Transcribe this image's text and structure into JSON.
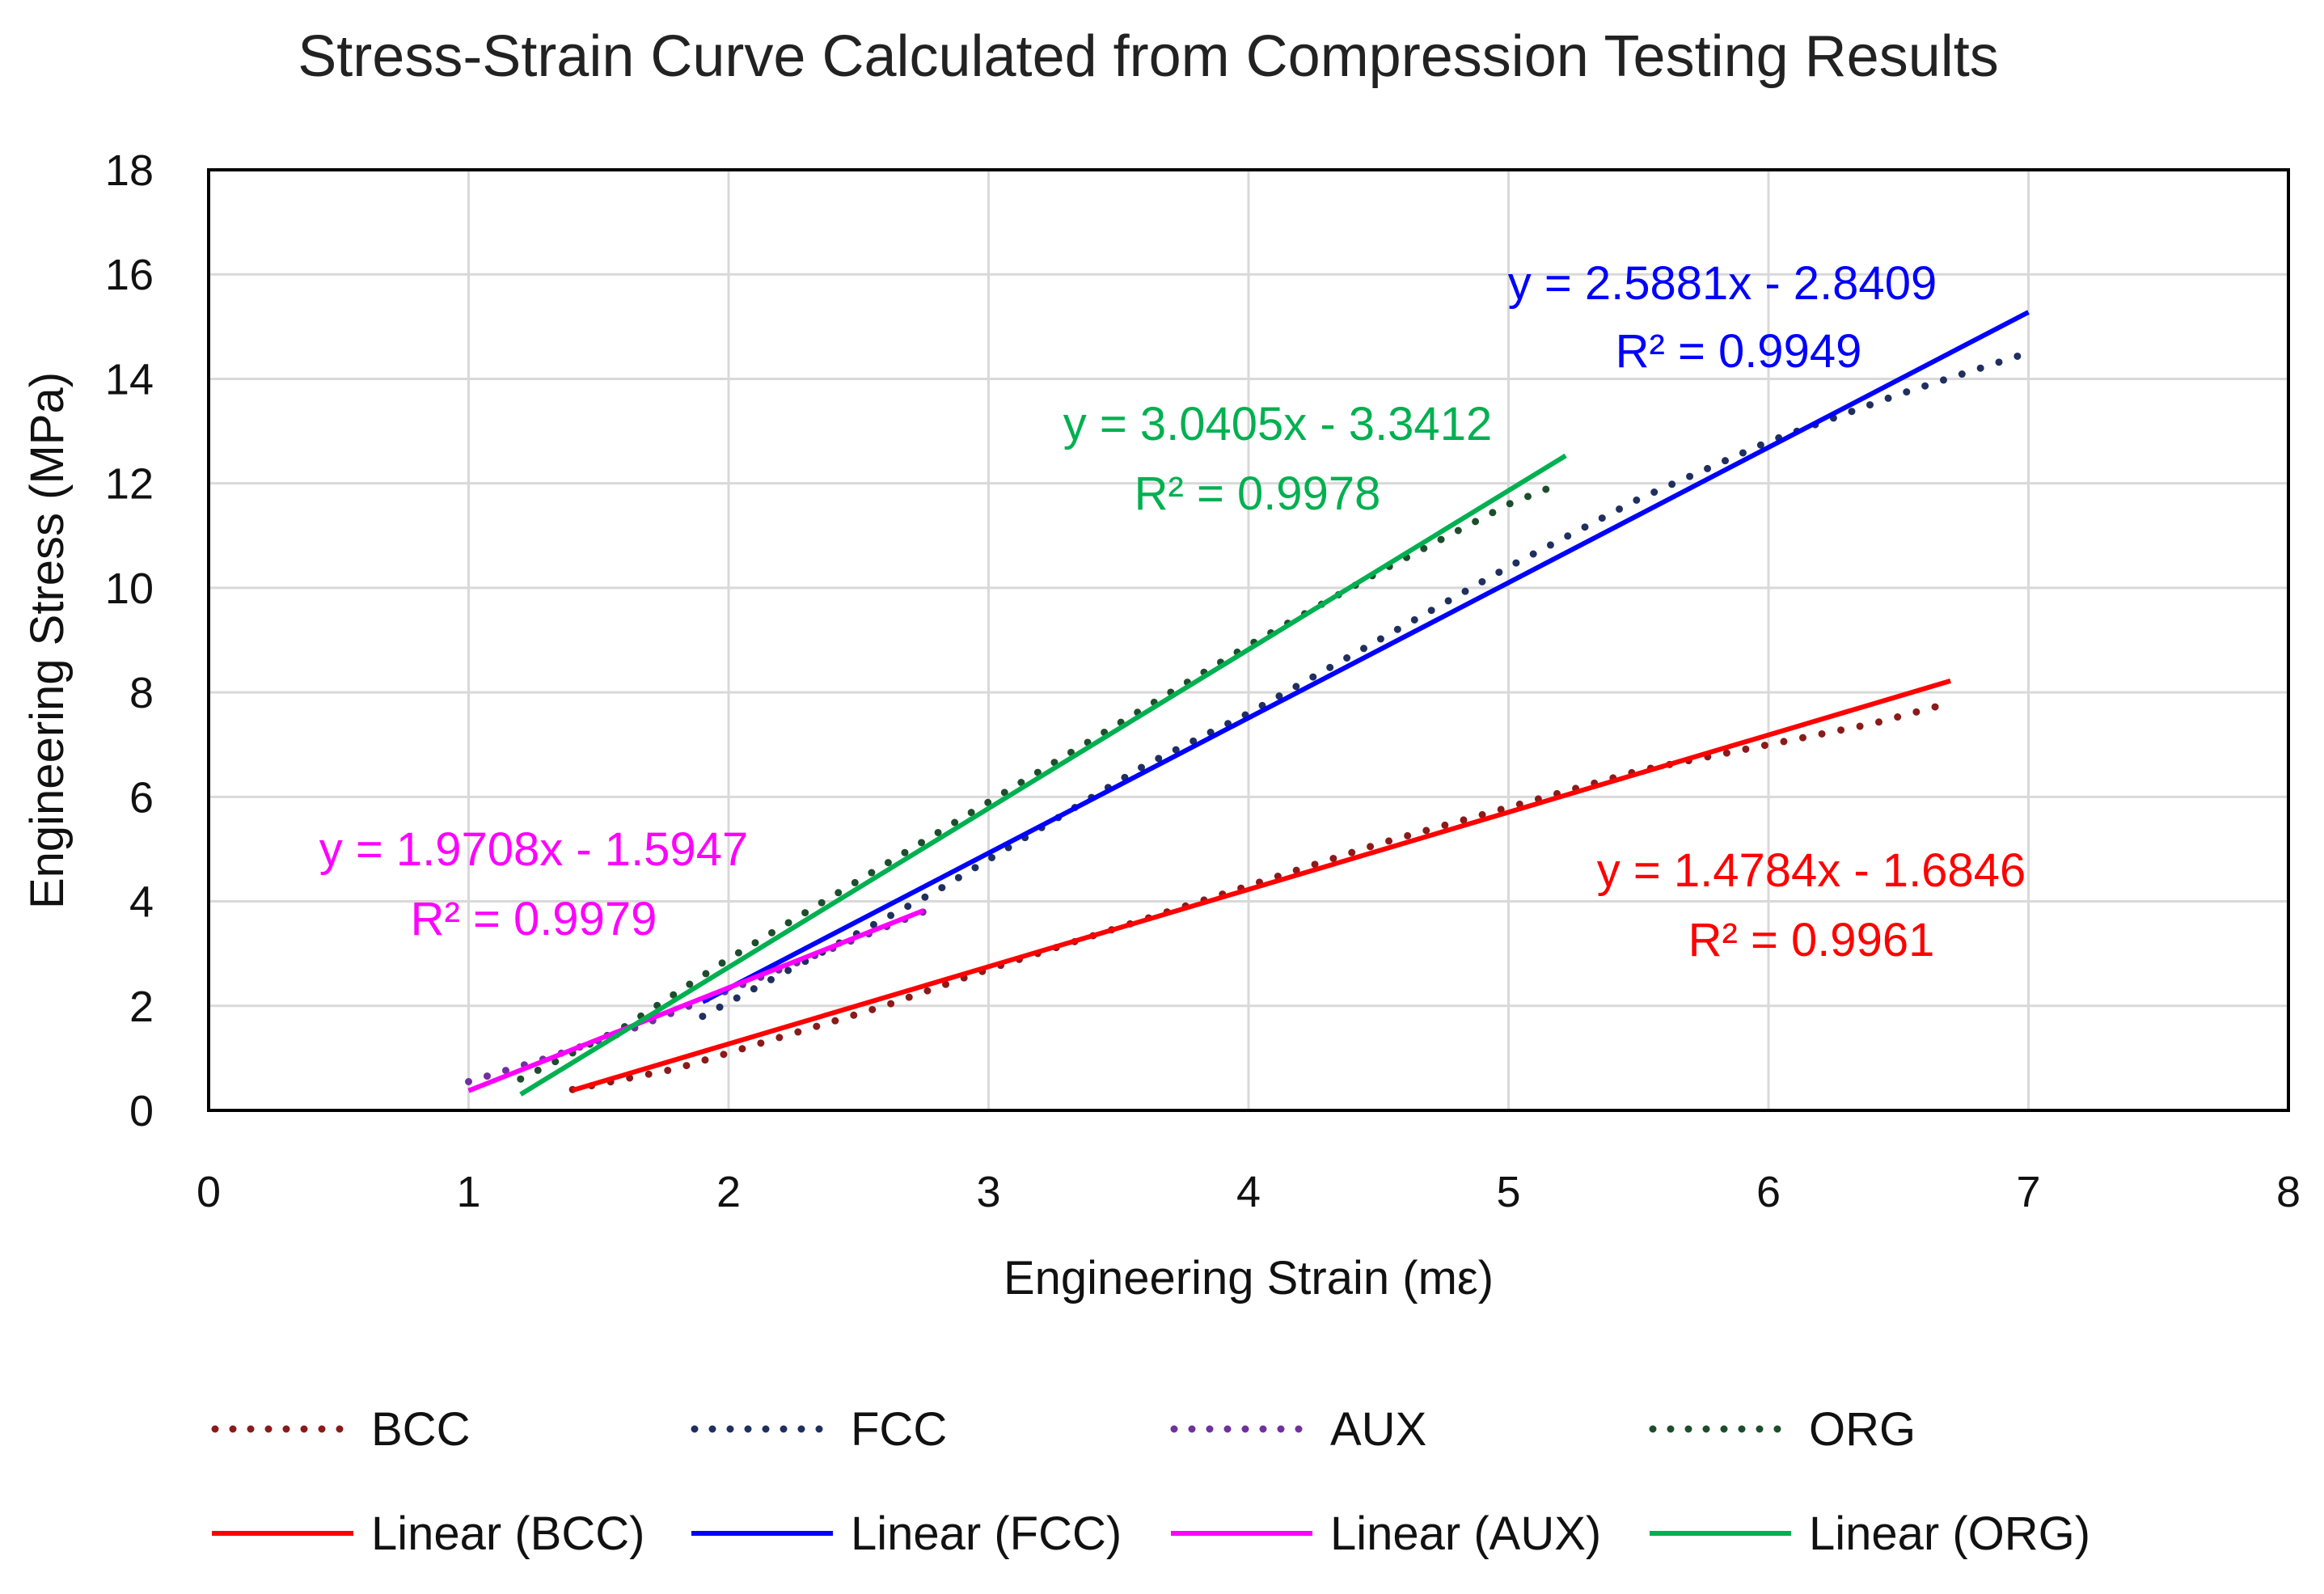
{
  "chart_data": {
    "type": "scatter",
    "title": "Stress-Strain Curve Calculated from Compression Testing Results",
    "xlabel": "Engineering Strain (mε)",
    "ylabel": "Engineering Stress (MPa)",
    "xlim": [
      0,
      8
    ],
    "ylim": [
      0,
      18
    ],
    "x_ticks": [
      "0",
      "1",
      "2",
      "3",
      "4",
      "5",
      "6",
      "7",
      "8"
    ],
    "y_ticks": [
      "0",
      "2",
      "4",
      "6",
      "8",
      "10",
      "12",
      "14",
      "16",
      "18"
    ],
    "grid": "vertical and horizontal major gridlines",
    "legend_position": "bottom",
    "series": [
      {
        "name": "BCC",
        "style": "dotted",
        "color": "#8B1A1A",
        "x": [
          1.4,
          1.8,
          2.2,
          2.6,
          3.0,
          3.5,
          4.0,
          4.5,
          5.0,
          5.5,
          6.0,
          6.4,
          6.7
        ],
        "y": [
          0.4,
          0.8,
          1.4,
          2.0,
          2.7,
          3.5,
          4.3,
          5.1,
          5.8,
          6.5,
          7.0,
          7.4,
          7.8
        ]
      },
      {
        "name": "FCC",
        "style": "dotted",
        "color": "#1F2F5F",
        "x": [
          1.9,
          2.2,
          2.5,
          2.8,
          3.2,
          3.6,
          4.0,
          4.5,
          5.0,
          5.5,
          6.0,
          6.5,
          7.0
        ],
        "y": [
          1.8,
          2.6,
          3.4,
          4.2,
          5.4,
          6.6,
          7.6,
          9.0,
          10.4,
          11.7,
          12.8,
          13.7,
          14.5
        ]
      },
      {
        "name": "AUX",
        "style": "dotted",
        "color": "#7030A0",
        "x": [
          1.0,
          1.3,
          1.6,
          1.9,
          2.2,
          2.5,
          2.75
        ],
        "y": [
          0.55,
          1.0,
          1.5,
          2.1,
          2.7,
          3.3,
          3.8
        ]
      },
      {
        "name": "ORG",
        "style": "dotted",
        "color": "#1E4D2B",
        "x": [
          1.2,
          1.6,
          2.0,
          2.5,
          3.0,
          3.5,
          4.0,
          4.5,
          5.0,
          5.2
        ],
        "y": [
          0.6,
          1.6,
          2.9,
          4.4,
          5.9,
          7.4,
          8.9,
          10.3,
          11.6,
          12.0
        ]
      },
      {
        "name": "Linear (BCC)",
        "style": "solid",
        "color": "#FF0000",
        "x": [
          1.4,
          6.7
        ],
        "y": [
          0.385,
          8.22
        ]
      },
      {
        "name": "Linear (FCC)",
        "style": "solid",
        "color": "#0000FF",
        "x": [
          1.9,
          7.0
        ],
        "y": [
          2.077,
          15.276
        ]
      },
      {
        "name": "Linear (AUX)",
        "style": "solid",
        "color": "#FF00FF",
        "x": [
          1.0,
          2.75
        ],
        "y": [
          0.376,
          3.825
        ]
      },
      {
        "name": "Linear (ORG)",
        "style": "solid",
        "color": "#00B050",
        "x": [
          1.2,
          5.22
        ],
        "y": [
          0.307,
          12.53
        ]
      }
    ],
    "annotations": [
      {
        "id": "fcc",
        "color": "#0000FF",
        "eq": "y = 2.5881x - 2.8409",
        "r2": "R² = 0.9949"
      },
      {
        "id": "org",
        "color": "#00B050",
        "eq": "y = 3.0405x - 3.3412",
        "r2": "R² = 0.9978"
      },
      {
        "id": "aux",
        "color": "#FF00FF",
        "eq": "y = 1.9708x - 1.5947",
        "r2": "R² = 0.9979"
      },
      {
        "id": "bcc",
        "color": "#FF0000",
        "eq": "y = 1.4784x - 1.6846",
        "r2": "R² = 0.9961"
      }
    ]
  }
}
